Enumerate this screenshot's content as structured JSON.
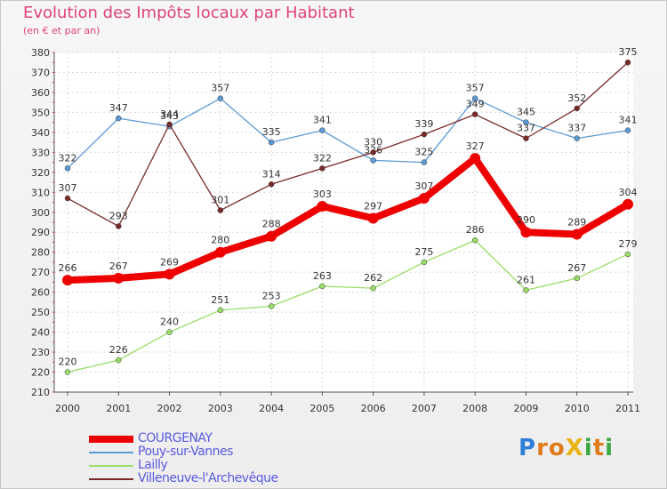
{
  "header": {
    "title": "Evolution des Impôts locaux par Habitant",
    "subtitle": "(en € et par an)"
  },
  "logo": {
    "text": "ProXiti",
    "letters": [
      "P",
      "r",
      "o",
      "X",
      "i",
      "t",
      "i"
    ],
    "colors": [
      "#2f7fd8",
      "#e07b1a",
      "#e07b1a",
      "#e8b418",
      "#3aa845",
      "#e07b1a",
      "#3aa845"
    ]
  },
  "chart_data": {
    "type": "line",
    "title": "Evolution des Impôts locaux par Habitant",
    "subtitle": "(en € et par an)",
    "xlabel": "",
    "ylabel": "",
    "x": [
      "2000",
      "2001",
      "2002",
      "2003",
      "2004",
      "2005",
      "2006",
      "2007",
      "2008",
      "2009",
      "2010",
      "2011"
    ],
    "ylim": [
      210,
      380
    ],
    "yticks": [
      210,
      220,
      230,
      240,
      250,
      260,
      270,
      280,
      290,
      300,
      310,
      320,
      330,
      340,
      350,
      360,
      370,
      380
    ],
    "grid": true,
    "legend": "bottom-left",
    "series": [
      {
        "name": "Pouy-sur-Vannes",
        "color": "#5b9bd5",
        "thick": false,
        "values": [
          322,
          347,
          343,
          357,
          335,
          341,
          326,
          325,
          357,
          345,
          337,
          341
        ]
      },
      {
        "name": "Villeneuve-l'Archevêque",
        "color": "#7a2a2a",
        "thick": false,
        "values": [
          307,
          293,
          344,
          301,
          314,
          322,
          330,
          339,
          349,
          337,
          352,
          375
        ]
      },
      {
        "name": "Lailly",
        "color": "#99dd66",
        "thick": false,
        "values": [
          220,
          226,
          240,
          251,
          253,
          263,
          262,
          275,
          286,
          261,
          267,
          279
        ]
      },
      {
        "name": "COURGENAY",
        "color": "#ee0000",
        "thick": true,
        "values": [
          266,
          267,
          269,
          280,
          288,
          303,
          297,
          307,
          327,
          290,
          289,
          304
        ]
      }
    ],
    "legend_order": [
      "COURGENAY",
      "Pouy-sur-Vannes",
      "Lailly",
      "Villeneuve-l'Archevêque"
    ]
  }
}
